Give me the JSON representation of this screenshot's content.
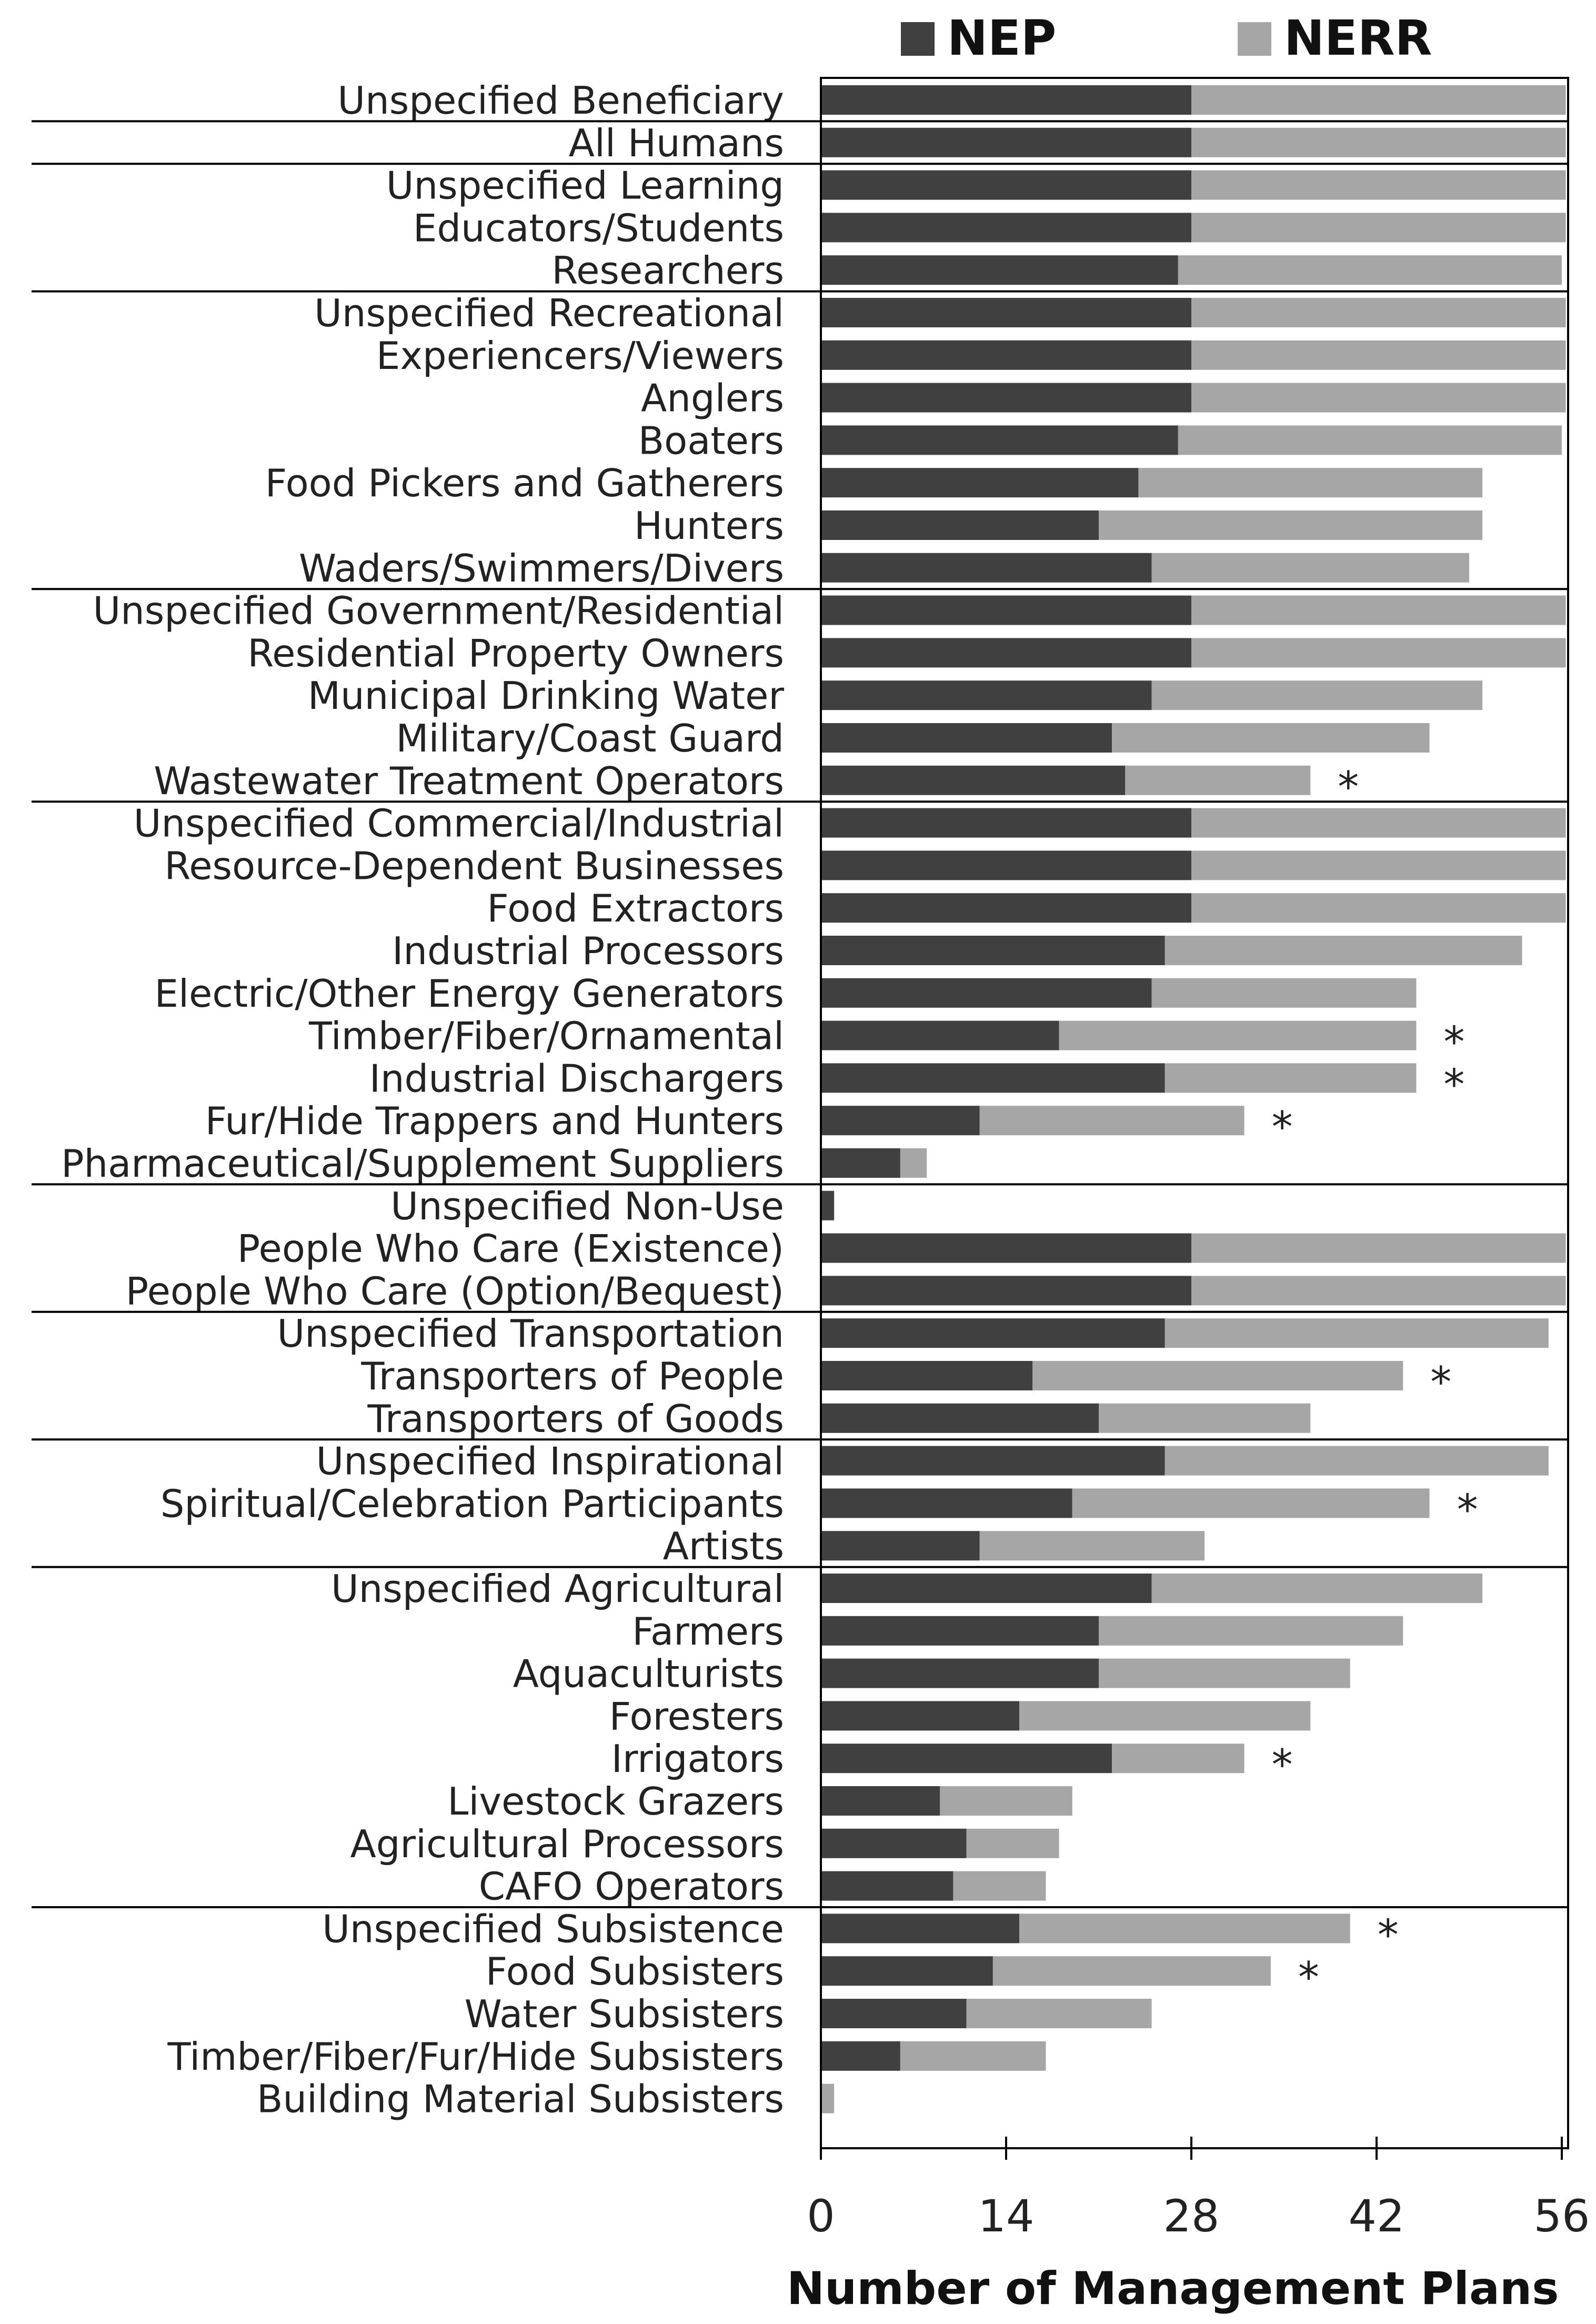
{
  "chart_data": {
    "type": "bar",
    "stacked": true,
    "orientation": "horizontal",
    "xlabel": "Number of Management Plans",
    "xlim": [
      0,
      56
    ],
    "xticks": [
      "0",
      "14",
      "28",
      "42",
      "56"
    ],
    "legend_position": "top",
    "colors": {
      "NEP": "#404040",
      "NERR": "#a6a6a6",
      "text": "#222222",
      "frame": "#000000"
    },
    "series": [
      {
        "name": "NEP",
        "key": "nep"
      },
      {
        "name": "NERR",
        "key": "nerr"
      }
    ],
    "groups": [
      {
        "rows": [
          {
            "label": "Unspecified Beneficiary",
            "nep": 28,
            "nerr": 29,
            "flag": ""
          }
        ]
      },
      {
        "rows": [
          {
            "label": "All Humans",
            "nep": 28,
            "nerr": 29,
            "flag": ""
          }
        ]
      },
      {
        "rows": [
          {
            "label": "Unspecified Learning",
            "nep": 28,
            "nerr": 29,
            "flag": ""
          },
          {
            "label": "Educators/Students",
            "nep": 28,
            "nerr": 29,
            "flag": ""
          },
          {
            "label": "Researchers",
            "nep": 27,
            "nerr": 29,
            "flag": ""
          }
        ]
      },
      {
        "rows": [
          {
            "label": "Unspecified Recreational",
            "nep": 28,
            "nerr": 29,
            "flag": ""
          },
          {
            "label": "Experiencers/Viewers",
            "nep": 28,
            "nerr": 29,
            "flag": ""
          },
          {
            "label": "Anglers",
            "nep": 28,
            "nerr": 29,
            "flag": ""
          },
          {
            "label": "Boaters",
            "nep": 27,
            "nerr": 29,
            "flag": ""
          },
          {
            "label": "Food Pickers and Gatherers",
            "nep": 24,
            "nerr": 26,
            "flag": ""
          },
          {
            "label": "Hunters",
            "nep": 21,
            "nerr": 29,
            "flag": ""
          },
          {
            "label": "Waders/Swimmers/Divers",
            "nep": 25,
            "nerr": 24,
            "flag": ""
          }
        ]
      },
      {
        "rows": [
          {
            "label": "Unspecified Government/Residential",
            "nep": 28,
            "nerr": 29,
            "flag": ""
          },
          {
            "label": "Residential Property Owners",
            "nep": 28,
            "nerr": 29,
            "flag": ""
          },
          {
            "label": "Municipal Drinking Water",
            "nep": 25,
            "nerr": 25,
            "flag": ""
          },
          {
            "label": "Military/Coast Guard",
            "nep": 22,
            "nerr": 24,
            "flag": ""
          },
          {
            "label": "Wastewater Treatment Operators",
            "nep": 23,
            "nerr": 14,
            "flag": "*"
          }
        ]
      },
      {
        "rows": [
          {
            "label": "Unspecified Commercial/Industrial",
            "nep": 28,
            "nerr": 29,
            "flag": ""
          },
          {
            "label": "Resource-Dependent Businesses",
            "nep": 28,
            "nerr": 29,
            "flag": ""
          },
          {
            "label": "Food Extractors",
            "nep": 28,
            "nerr": 29,
            "flag": ""
          },
          {
            "label": "Industrial Processors",
            "nep": 26,
            "nerr": 27,
            "flag": ""
          },
          {
            "label": "Electric/Other Energy Generators",
            "nep": 25,
            "nerr": 20,
            "flag": ""
          },
          {
            "label": "Timber/Fiber/Ornamental",
            "nep": 18,
            "nerr": 27,
            "flag": "*"
          },
          {
            "label": "Industrial Dischargers",
            "nep": 26,
            "nerr": 19,
            "flag": "*"
          },
          {
            "label": "Fur/Hide Trappers and Hunters",
            "nep": 12,
            "nerr": 20,
            "flag": "*"
          },
          {
            "label": "Pharmaceutical/Supplement Suppliers",
            "nep": 6,
            "nerr": 2,
            "flag": ""
          }
        ]
      },
      {
        "rows": [
          {
            "label": "Unspecified Non-Use",
            "nep": 1,
            "nerr": 0,
            "flag": ""
          },
          {
            "label": "People Who Care (Existence)",
            "nep": 28,
            "nerr": 29,
            "flag": ""
          },
          {
            "label": "People Who Care (Option/Bequest)",
            "nep": 28,
            "nerr": 29,
            "flag": ""
          }
        ]
      },
      {
        "rows": [
          {
            "label": "Unspecified Transportation",
            "nep": 26,
            "nerr": 29,
            "flag": ""
          },
          {
            "label": "Transporters of People",
            "nep": 16,
            "nerr": 28,
            "flag": "*"
          },
          {
            "label": "Transporters of Goods",
            "nep": 21,
            "nerr": 16,
            "flag": ""
          }
        ]
      },
      {
        "rows": [
          {
            "label": "Unspecified Inspirational",
            "nep": 26,
            "nerr": 29,
            "flag": ""
          },
          {
            "label": "Spiritual/Celebration Participants",
            "nep": 19,
            "nerr": 27,
            "flag": "*"
          },
          {
            "label": "Artists",
            "nep": 12,
            "nerr": 17,
            "flag": ""
          }
        ]
      },
      {
        "rows": [
          {
            "label": "Unspecified Agricultural",
            "nep": 25,
            "nerr": 25,
            "flag": ""
          },
          {
            "label": "Farmers",
            "nep": 21,
            "nerr": 23,
            "flag": ""
          },
          {
            "label": "Aquaculturists",
            "nep": 21,
            "nerr": 19,
            "flag": ""
          },
          {
            "label": "Foresters",
            "nep": 15,
            "nerr": 22,
            "flag": ""
          },
          {
            "label": "Irrigators",
            "nep": 22,
            "nerr": 10,
            "flag": "*"
          },
          {
            "label": "Livestock Grazers",
            "nep": 9,
            "nerr": 10,
            "flag": ""
          },
          {
            "label": "Agricultural Processors",
            "nep": 11,
            "nerr": 7,
            "flag": ""
          },
          {
            "label": "CAFO Operators",
            "nep": 10,
            "nerr": 7,
            "flag": ""
          }
        ]
      },
      {
        "rows": [
          {
            "label": "Unspecified Subsistence",
            "nep": 15,
            "nerr": 25,
            "flag": "*"
          },
          {
            "label": "Food Subsisters",
            "nep": 13,
            "nerr": 21,
            "flag": "*"
          },
          {
            "label": "Water Subsisters",
            "nep": 11,
            "nerr": 14,
            "flag": ""
          },
          {
            "label": "Timber/Fiber/Fur/Hide Subsisters",
            "nep": 6,
            "nerr": 11,
            "flag": ""
          },
          {
            "label": "Building Material Subsisters",
            "nep": 0,
            "nerr": 1,
            "flag": ""
          }
        ]
      }
    ]
  }
}
